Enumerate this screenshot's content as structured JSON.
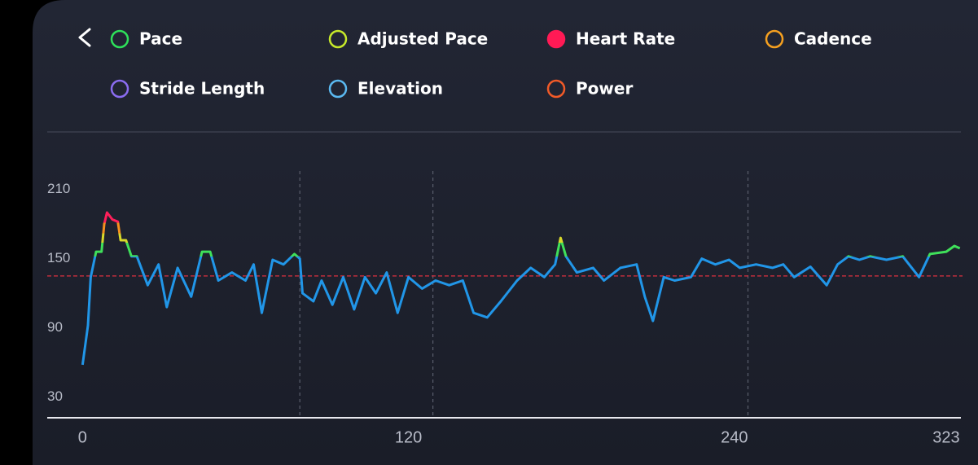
{
  "chart_data": {
    "type": "line",
    "legend": [
      {
        "name": "Pace",
        "color": "#2ee05a",
        "active": false
      },
      {
        "name": "Adjusted Pace",
        "color": "#c6e82a",
        "active": false
      },
      {
        "name": "Heart Rate",
        "color": "#ff1a55",
        "active": true
      },
      {
        "name": "Cadence",
        "color": "#f5a020",
        "active": false
      },
      {
        "name": "Stride Length",
        "color": "#8a6cf0",
        "active": false
      },
      {
        "name": "Elevation",
        "color": "#5ab8f0",
        "active": false
      },
      {
        "name": "Power",
        "color": "#f05a28",
        "active": false
      }
    ],
    "x": [
      0,
      2,
      3,
      5,
      7,
      8,
      9,
      11,
      13,
      14,
      16,
      18,
      20,
      24,
      28,
      31,
      35,
      40,
      44,
      47,
      50,
      55,
      60,
      63,
      66,
      70,
      74,
      78,
      80,
      81,
      85,
      88,
      92,
      96,
      100,
      104,
      108,
      112,
      116,
      120,
      125,
      130,
      135,
      140,
      144,
      149,
      154,
      160,
      165,
      170,
      174,
      176,
      178,
      182,
      188,
      192,
      198,
      204,
      207,
      210,
      214,
      218,
      224,
      228,
      233,
      238,
      242,
      248,
      254,
      258,
      262,
      268,
      274,
      278,
      282,
      286,
      290,
      296,
      302,
      308,
      312,
      318,
      321,
      323
    ],
    "values": [
      58,
      92,
      134,
      156,
      156,
      180,
      190,
      184,
      182,
      166,
      166,
      152,
      152,
      127,
      145,
      108,
      142,
      117,
      156,
      156,
      131,
      138,
      131,
      145,
      103,
      149,
      145,
      154,
      150,
      120,
      113,
      131,
      110,
      134,
      106,
      134,
      120,
      138,
      103,
      134,
      124,
      131,
      127,
      131,
      103,
      99,
      113,
      131,
      142,
      134,
      145,
      168,
      152,
      138,
      142,
      131,
      142,
      145,
      117,
      96,
      134,
      131,
      134,
      150,
      145,
      149,
      142,
      145,
      142,
      145,
      134,
      143,
      127,
      145,
      152,
      149,
      152,
      149,
      152,
      134,
      154,
      156,
      161,
      159
    ],
    "zones": [
      {
        "min": 0,
        "color": "#2196e8"
      },
      {
        "min": 152,
        "color": "#3fe05a"
      },
      {
        "min": 164,
        "color": "#d8d82a"
      },
      {
        "min": 172,
        "color": "#f5901e"
      },
      {
        "min": 181,
        "color": "#ff1f5a"
      }
    ],
    "reference_line": 135,
    "reference_color": "#e03040",
    "markers": [
      80,
      129,
      245
    ],
    "xlim": [
      -13,
      324
    ],
    "ylim": [
      12,
      226
    ],
    "xticks": [
      0,
      120,
      240,
      323
    ],
    "yticks": [
      30,
      90,
      150,
      210
    ],
    "grid": false
  }
}
